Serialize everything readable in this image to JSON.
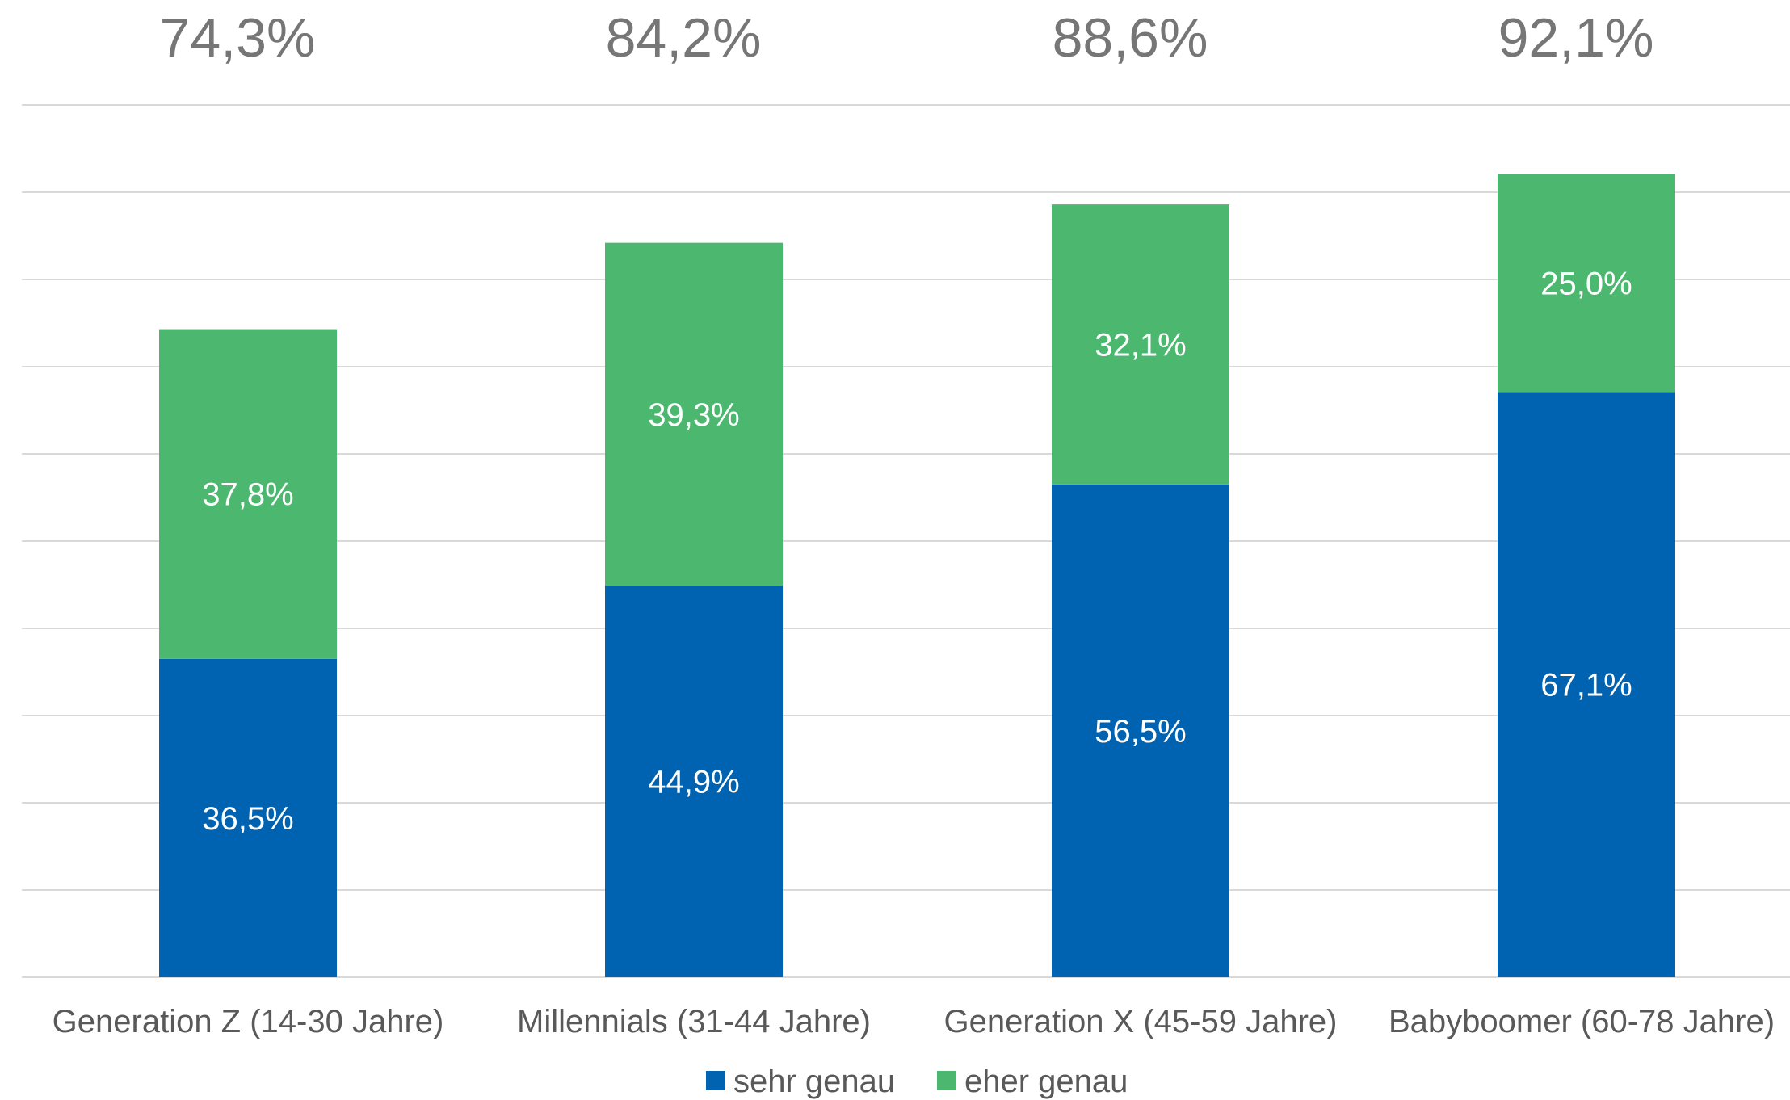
{
  "chart_data": {
    "type": "bar",
    "stacked": true,
    "categories": [
      "Generation Z (14-30 Jahre)",
      "Millennials (31-44 Jahre)",
      "Generation X (45-59 Jahre)",
      "Babyboomer (60-78 Jahre)"
    ],
    "series": [
      {
        "name": "sehr genau",
        "color": "#0063b1",
        "values": [
          36.5,
          44.9,
          56.5,
          67.1
        ],
        "labels": [
          "36,5%",
          "44,9%",
          "56,5%",
          "67,1%"
        ]
      },
      {
        "name": "eher genau",
        "color": "#4cb86f",
        "values": [
          37.8,
          39.3,
          32.1,
          25.0
        ],
        "labels": [
          "37,8%",
          "39,3%",
          "32,1%",
          "25,0%"
        ]
      }
    ],
    "totals": {
      "values": [
        74.3,
        84.2,
        88.6,
        92.1
      ],
      "labels": [
        "74,3%",
        "84,2%",
        "88,6%",
        "92,1%"
      ]
    },
    "title": "",
    "xlabel": "",
    "ylabel": "",
    "ylim": [
      0,
      100
    ],
    "grid": true,
    "legend": "bottom-center"
  }
}
